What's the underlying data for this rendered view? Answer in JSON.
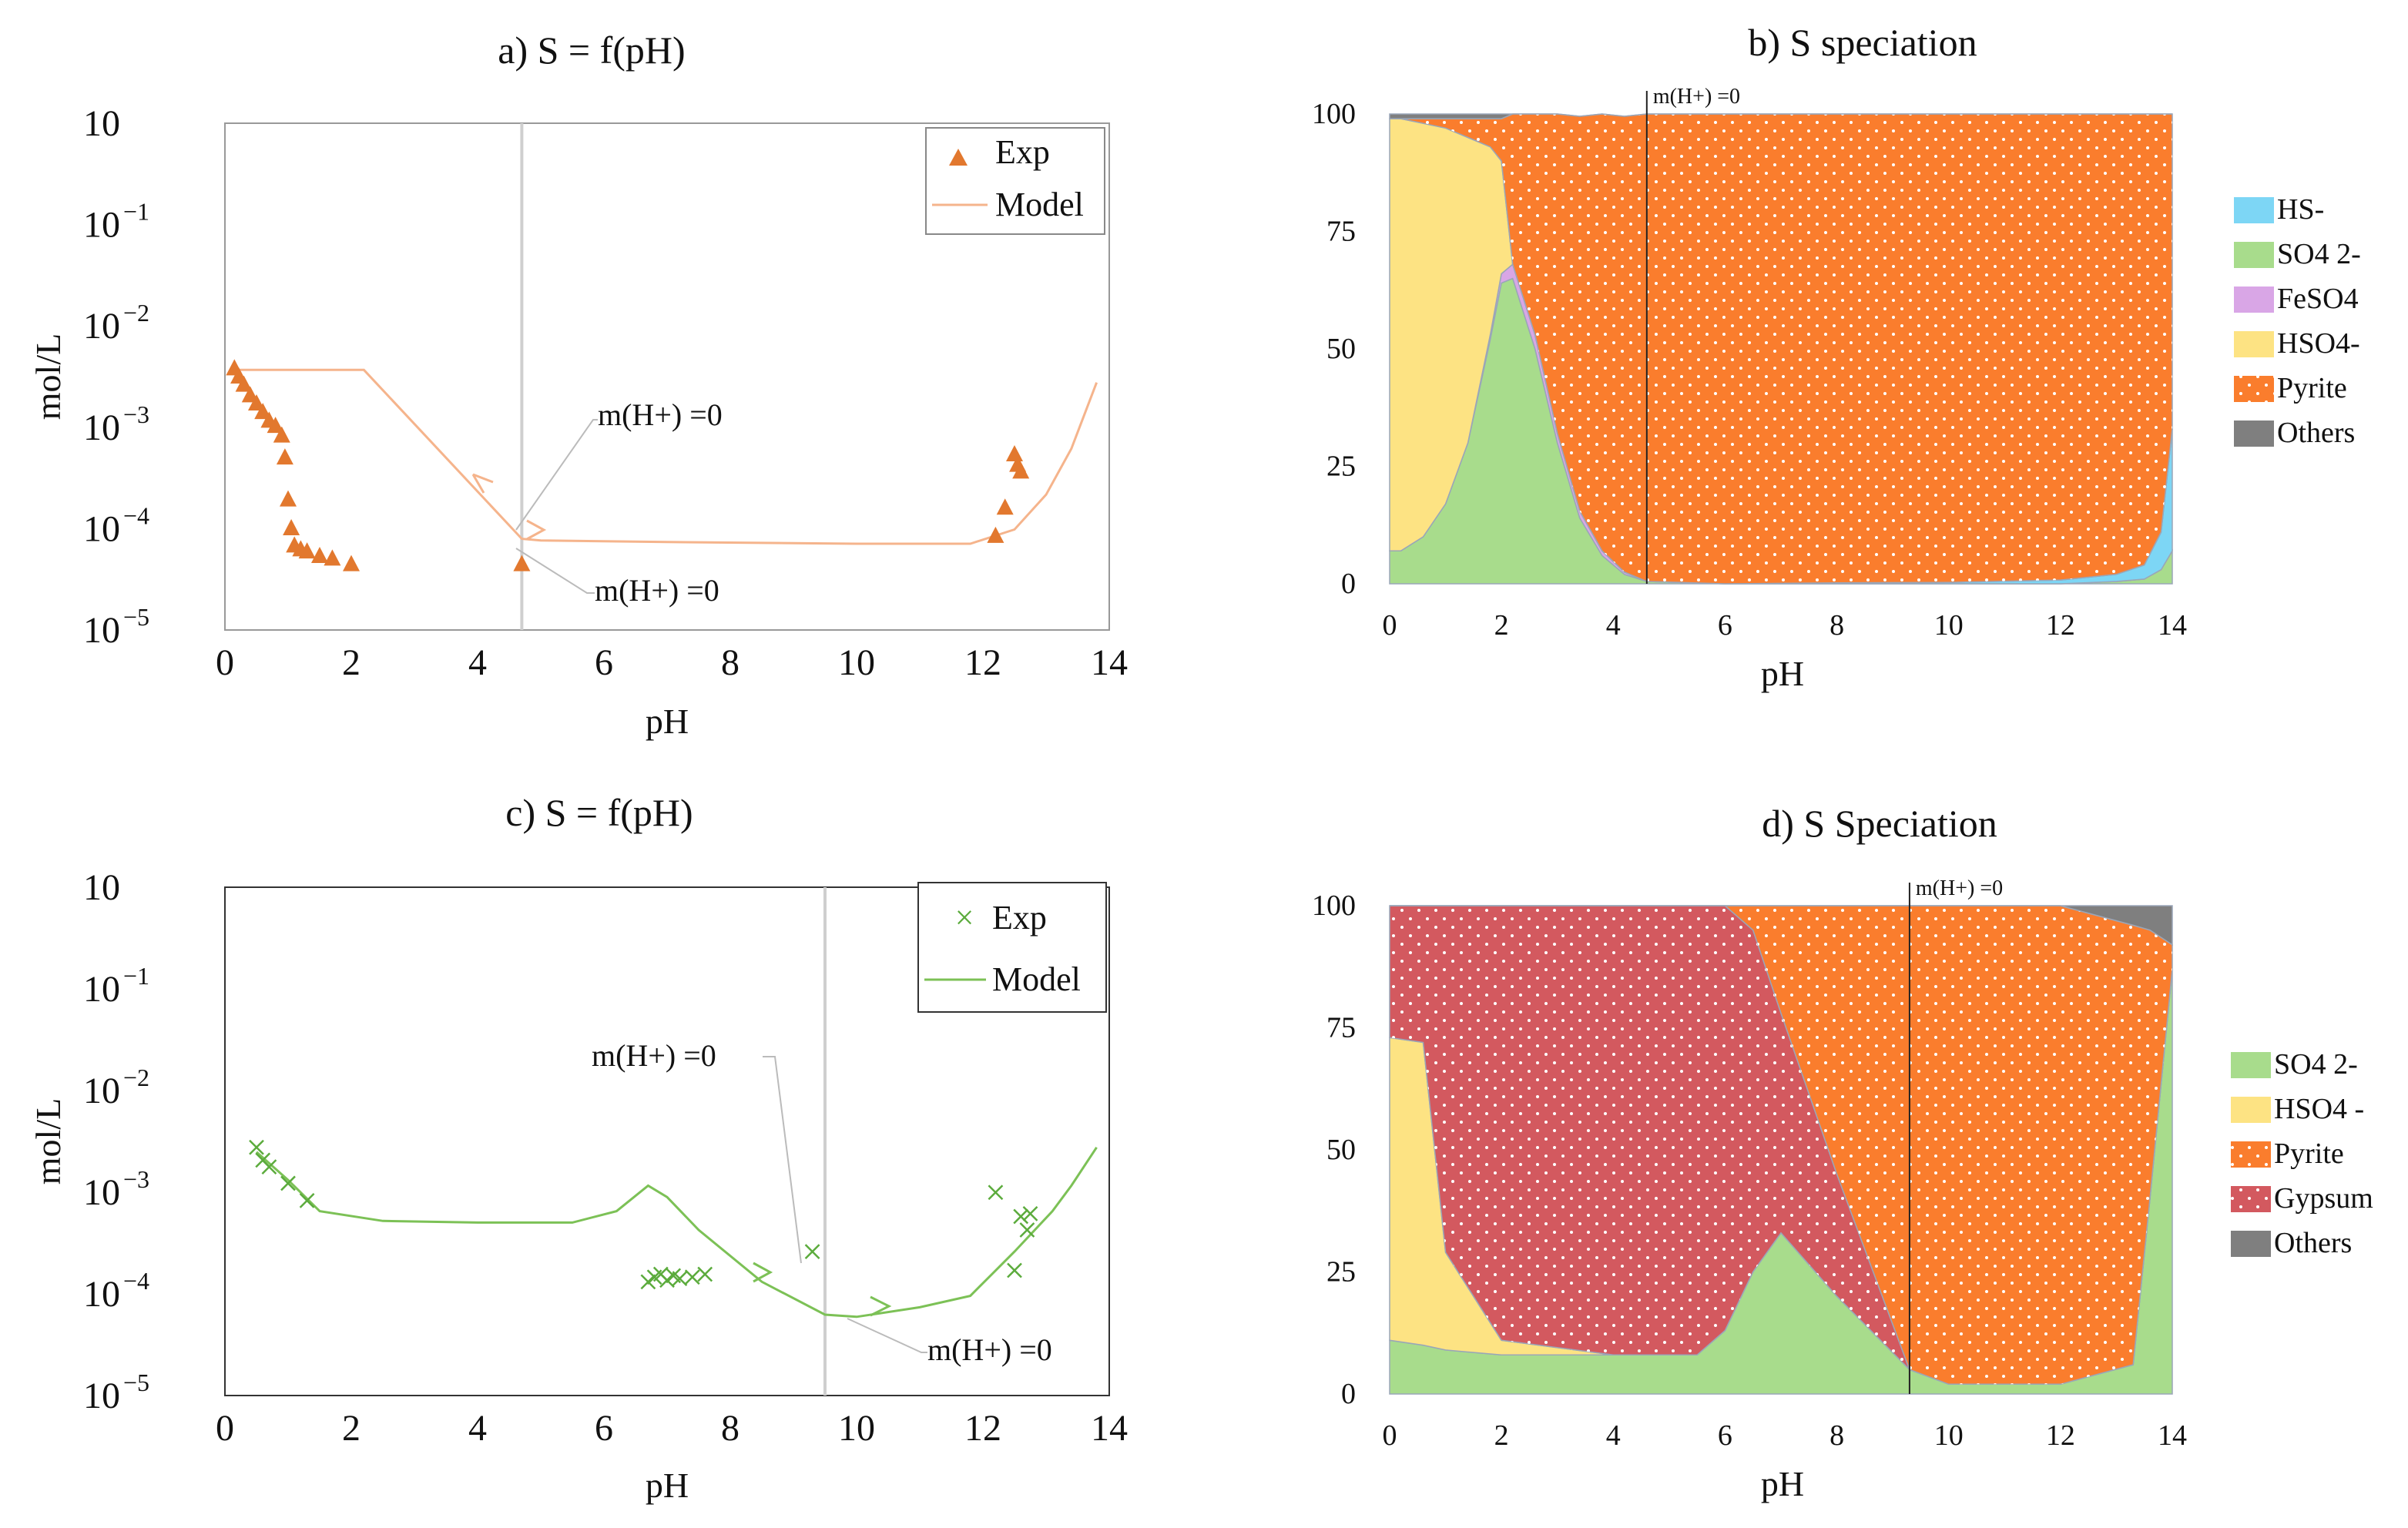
{
  "charts": [
    {
      "id": "a",
      "type": "scatter",
      "title": "a) S = f(pH)",
      "xlabel": "pH",
      "ylabel": "mol/L",
      "x_ticks": [
        "0",
        "2",
        "4",
        "6",
        "8",
        "10",
        "12",
        "14"
      ],
      "y_ticks": [
        "10",
        "10",
        "10",
        "10",
        "10",
        "10"
      ],
      "y_tick_exps": [
        "",
        "−1",
        "−2",
        "−3",
        "−4",
        "−5"
      ],
      "xlim": [
        0,
        14
      ],
      "ylim_log10": [
        -5,
        1
      ],
      "legend": {
        "exp": "Exp",
        "model": "Model"
      },
      "annotations": [
        "m(H+) =0",
        "m(H+) =0"
      ],
      "vline_x": 4.7,
      "colors": {
        "exp": "#e2782e",
        "model": "#f5b48c"
      },
      "exp_points": [
        [
          0.15,
          0.0125
        ],
        [
          0.22,
          0.01
        ],
        [
          0.3,
          0.008
        ],
        [
          0.4,
          0.006
        ],
        [
          0.5,
          0.0048
        ],
        [
          0.6,
          0.0038
        ],
        [
          0.7,
          0.003
        ],
        [
          0.8,
          0.0026
        ],
        [
          0.9,
          0.002
        ],
        [
          0.95,
          0.0011
        ],
        [
          1.0,
          0.00035
        ],
        [
          1.05,
          0.00016
        ],
        [
          1.1,
          0.0001
        ],
        [
          1.2,
          9e-05
        ],
        [
          1.3,
          8.5e-05
        ],
        [
          1.5,
          7.5e-05
        ],
        [
          1.7,
          7e-05
        ],
        [
          2.0,
          6e-05
        ],
        [
          4.7,
          6e-05
        ],
        [
          12.2,
          0.00013
        ],
        [
          12.35,
          0.00028
        ],
        [
          12.5,
          0.0012
        ],
        [
          12.55,
          0.0009
        ],
        [
          12.6,
          0.00075
        ]
      ],
      "model_points": [
        [
          0.1,
          0.012
        ],
        [
          2.2,
          0.012
        ],
        [
          4.7,
          0.00012
        ],
        [
          5.0,
          0.000115
        ],
        [
          7,
          0.00011
        ],
        [
          10,
          0.000105
        ],
        [
          11.8,
          0.000105
        ],
        [
          12.5,
          0.000155
        ],
        [
          13.0,
          0.0004
        ],
        [
          13.4,
          0.0014
        ],
        [
          13.8,
          0.0085
        ]
      ]
    },
    {
      "id": "c",
      "type": "scatter",
      "title": "c) S = f(pH)",
      "xlabel": "pH",
      "ylabel": "mol/L",
      "x_ticks": [
        "0",
        "2",
        "4",
        "6",
        "8",
        "10",
        "12",
        "14"
      ],
      "y_ticks": [
        "10",
        "10",
        "10",
        "10",
        "10",
        "10"
      ],
      "y_tick_exps": [
        "",
        "−1",
        "−2",
        "−3",
        "−4",
        "−5"
      ],
      "xlim": [
        0,
        14
      ],
      "ylim_log10": [
        -5,
        1
      ],
      "legend": {
        "exp": "Exp",
        "model": "Model"
      },
      "annotations": [
        "m(H+) =0",
        "m(H+) =0"
      ],
      "vline_x": 9.5,
      "colors": {
        "exp": "#5bab3c",
        "model": "#7cc156"
      },
      "exp_points": [
        [
          0.5,
          0.0085
        ],
        [
          0.6,
          0.006
        ],
        [
          0.7,
          0.005
        ],
        [
          1.0,
          0.0032
        ],
        [
          1.3,
          0.002
        ],
        [
          6.7,
          0.00022
        ],
        [
          6.8,
          0.00025
        ],
        [
          6.9,
          0.00027
        ],
        [
          7.0,
          0.00023
        ],
        [
          7.1,
          0.00026
        ],
        [
          7.2,
          0.00024
        ],
        [
          7.4,
          0.00025
        ],
        [
          7.6,
          0.00027
        ],
        [
          9.3,
          0.0005
        ],
        [
          12.2,
          0.0025
        ],
        [
          12.5,
          0.0003
        ],
        [
          12.6,
          0.0013
        ],
        [
          12.7,
          0.0009
        ],
        [
          12.75,
          0.0014
        ]
      ],
      "model_points": [
        [
          0.5,
          0.0075
        ],
        [
          1.0,
          0.0035
        ],
        [
          1.5,
          0.0015
        ],
        [
          2.5,
          0.00115
        ],
        [
          4,
          0.0011
        ],
        [
          5.5,
          0.0011
        ],
        [
          6.2,
          0.0015
        ],
        [
          6.7,
          0.003
        ],
        [
          7.0,
          0.0022
        ],
        [
          7.5,
          0.0009
        ],
        [
          8.5,
          0.00022
        ],
        [
          9.5,
          9e-05
        ],
        [
          10.0,
          8.5e-05
        ],
        [
          11.0,
          0.00011
        ],
        [
          11.8,
          0.00015
        ],
        [
          12.5,
          0.0005
        ],
        [
          13.1,
          0.0015
        ],
        [
          13.4,
          0.003
        ],
        [
          13.8,
          0.0085
        ]
      ]
    },
    {
      "id": "b",
      "type": "area",
      "title": "b) S speciation",
      "xlabel": "pH",
      "x_ticks": [
        "0",
        "2",
        "4",
        "6",
        "8",
        "10",
        "12",
        "14"
      ],
      "y_ticks": [
        "100",
        "75",
        "50",
        "25",
        "0"
      ],
      "xlim": [
        0,
        14
      ],
      "ylim": [
        0,
        100
      ],
      "vline_x": 4.6,
      "vline_label": "m(H+) =0",
      "legend": [
        "HS-",
        "SO4 2-",
        "FeSO4",
        "HSO4-",
        "Pyrite",
        "Others"
      ],
      "colors": {
        "HS-": "#7dd6f5",
        "SO4 2-": "#a8dc8c",
        "FeSO4": "#d9a6e6",
        "HSO4-": "#fde383",
        "Pyrite": "#fa7d2d",
        "Others": "#7f7f7f"
      },
      "x": [
        0,
        0.2,
        0.6,
        1.0,
        1.4,
        1.8,
        2.0,
        2.2,
        2.6,
        3.0,
        3.4,
        3.8,
        4.2,
        4.6,
        6,
        8,
        10,
        12,
        13,
        13.5,
        13.8,
        14
      ],
      "series": [
        {
          "name": "SO4 2-",
          "values": [
            7,
            7,
            10,
            17,
            30,
            52,
            64,
            65,
            50,
            30,
            14,
            6,
            2,
            0.5,
            0,
            0,
            0,
            0,
            0.5,
            1,
            3,
            7
          ]
        },
        {
          "name": "FeSO4",
          "values": [
            0,
            0,
            0,
            0,
            0,
            1,
            2,
            3,
            3,
            2,
            1.5,
            1,
            0.5,
            0,
            0,
            0,
            0,
            0,
            0,
            0,
            0,
            0
          ]
        },
        {
          "name": "HS-",
          "values": [
            0,
            0,
            0,
            0,
            0,
            0,
            0,
            0,
            0,
            0,
            0,
            0,
            0,
            0,
            0,
            0.2,
            0.3,
            0.8,
            1.5,
            3,
            8,
            26
          ]
        },
        {
          "name": "HSO4-",
          "values": [
            92,
            92,
            88,
            80,
            65,
            40,
            24,
            0,
            0,
            0,
            0,
            0,
            0,
            0,
            0,
            0,
            0,
            0,
            0,
            0,
            0,
            0
          ]
        },
        {
          "name": "Pyrite",
          "values": [
            0,
            0,
            1,
            2,
            4,
            6,
            9,
            32,
            47,
            68,
            84,
            93,
            97,
            99.5,
            100,
            99.8,
            99.7,
            99.2,
            98,
            96,
            89,
            67
          ]
        },
        {
          "name": "Others",
          "values": [
            1,
            1,
            1,
            1,
            1,
            1,
            1,
            0,
            0,
            0,
            0,
            0,
            0,
            0,
            0,
            0,
            0,
            0,
            0,
            0,
            0,
            0
          ]
        }
      ]
    },
    {
      "id": "d",
      "type": "area",
      "title": "d) S Speciation",
      "xlabel": "pH",
      "x_ticks": [
        "0",
        "2",
        "4",
        "6",
        "8",
        "10",
        "12",
        "14"
      ],
      "y_ticks": [
        "100",
        "75",
        "50",
        "25",
        "0"
      ],
      "xlim": [
        0,
        14
      ],
      "ylim": [
        0,
        100
      ],
      "vline_x": 9.3,
      "vline_label": "m(H+) =0",
      "legend": [
        "SO4 2-",
        "HSO4 -",
        "Pyrite",
        "Gypsum",
        "Others"
      ],
      "colors": {
        "SO4 2-": "#a8dc8c",
        "HSO4 -": "#fde383",
        "Pyrite": "#fa7d2d",
        "Gypsum": "#d3595f",
        "Others": "#7f7f7f"
      },
      "x": [
        0,
        0.6,
        1.0,
        2.0,
        4.0,
        5.5,
        6.0,
        6.5,
        7.0,
        8.0,
        9.3,
        10,
        12,
        13.3,
        13.6,
        14
      ],
      "series": [
        {
          "name": "SO4 2-",
          "values": [
            11,
            10,
            9,
            8,
            8,
            8,
            13,
            25,
            33,
            20,
            5,
            2,
            2,
            6,
            40,
            87
          ]
        },
        {
          "name": "HSO4 -",
          "values": [
            62,
            62,
            20,
            3,
            0,
            0,
            0,
            0,
            0,
            0,
            0,
            0,
            0,
            0,
            0,
            0
          ]
        },
        {
          "name": "Gypsum",
          "values": [
            27,
            28,
            71,
            89,
            92,
            92,
            87,
            70,
            45,
            25,
            0,
            0,
            0,
            0,
            0,
            0
          ]
        },
        {
          "name": "Pyrite",
          "values": [
            0,
            0,
            0,
            0,
            0,
            0,
            0,
            5,
            22,
            55,
            95,
            98,
            98,
            90,
            55,
            5
          ]
        },
        {
          "name": "Others",
          "values": [
            0,
            0,
            0,
            0,
            0,
            0,
            0,
            0,
            0,
            0,
            0,
            0,
            0,
            4,
            5,
            8
          ]
        }
      ]
    }
  ]
}
